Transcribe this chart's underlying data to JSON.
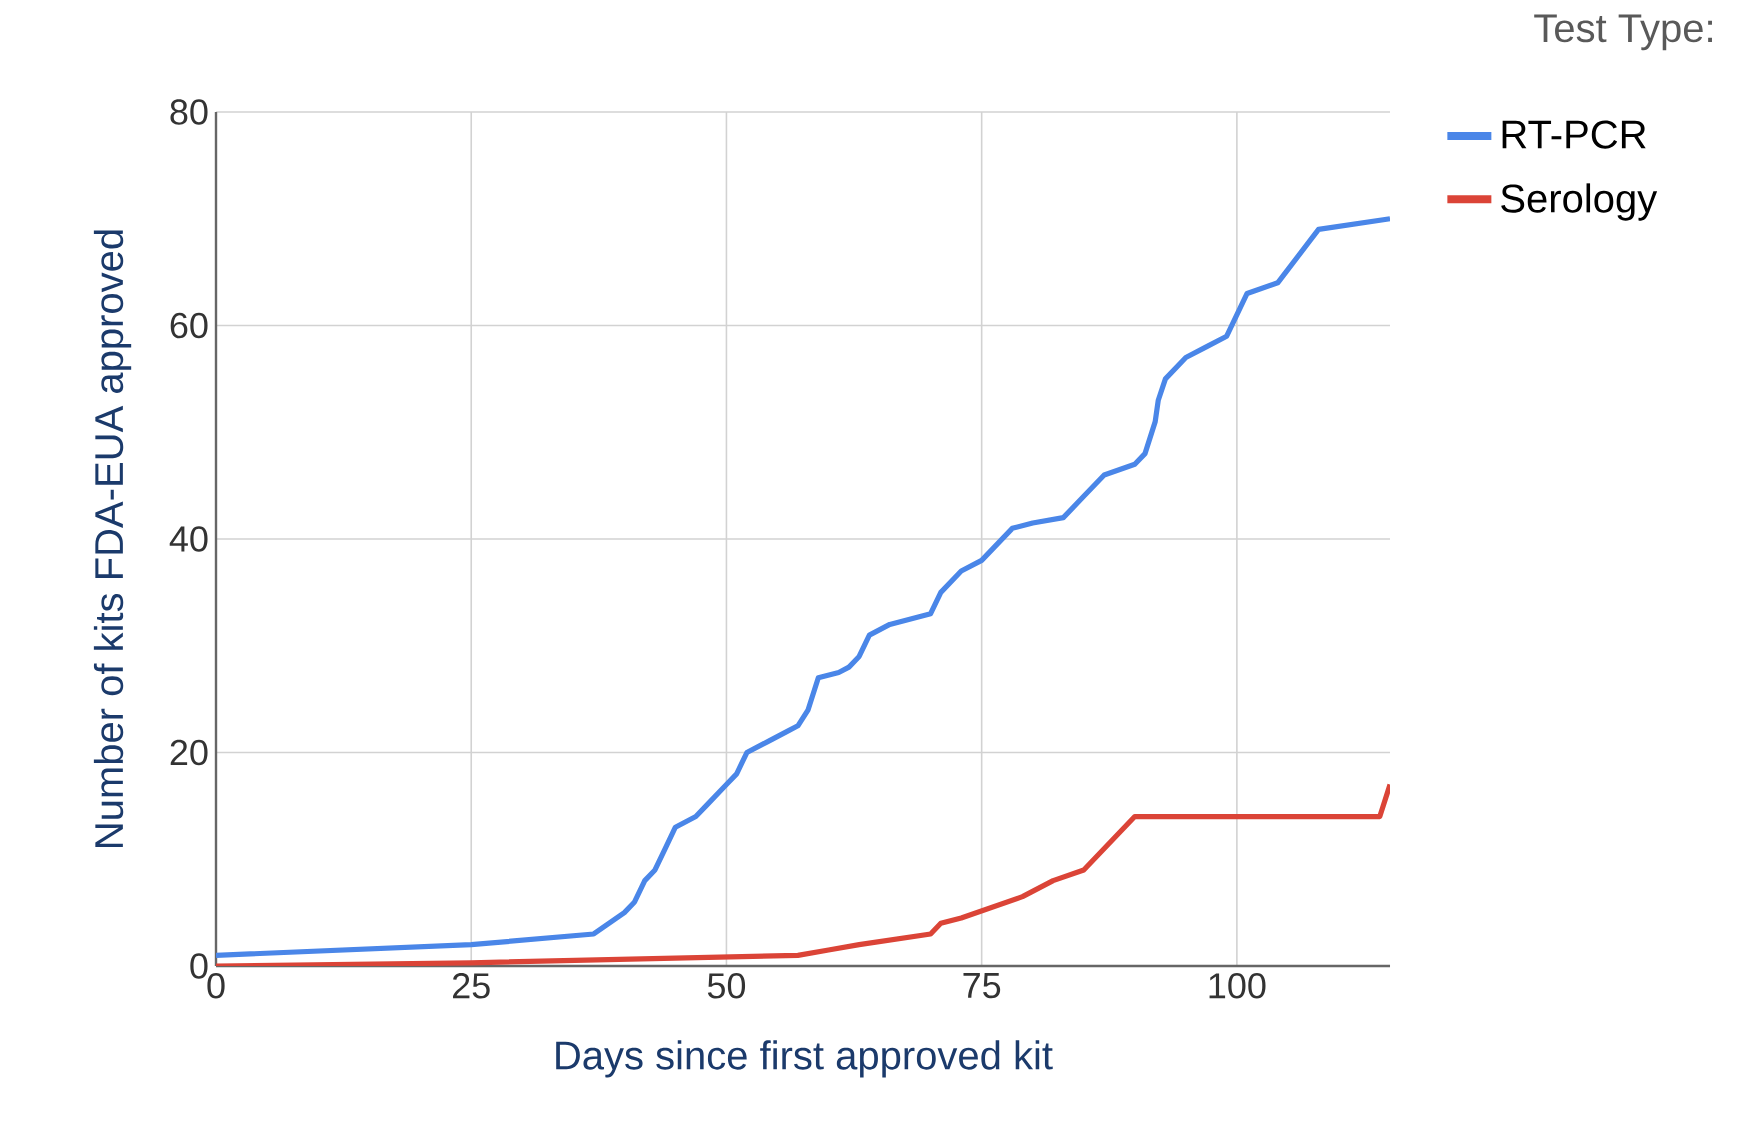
{
  "chart_data": {
    "type": "line",
    "xlabel": "Days since first approved kit",
    "ylabel": "Number of kits FDA-EUA approved",
    "legend_title": "Test Type:",
    "legend": "top right",
    "grid": true,
    "xlim": [
      0,
      115
    ],
    "ylim": [
      0,
      80
    ],
    "xticks": [
      0,
      25,
      50,
      75,
      100
    ],
    "yticks": [
      0,
      20,
      40,
      60,
      80
    ],
    "series": [
      {
        "name": "RT-PCR",
        "color": "#4a86e8",
        "x": [
          0,
          25,
          37,
          40,
          41,
          42,
          43,
          44,
          45,
          47,
          48,
          50,
          51,
          52,
          54,
          56,
          57,
          58,
          59,
          61,
          62,
          63,
          64,
          66,
          70,
          71,
          73,
          75,
          78,
          80,
          83,
          85,
          87,
          90,
          91,
          92,
          92.3,
          93,
          95,
          97,
          99,
          101,
          104,
          108,
          115
        ],
        "values": [
          1,
          2,
          3,
          5,
          6,
          8,
          9,
          11,
          13,
          14,
          15,
          17,
          18,
          20,
          21,
          22,
          22.5,
          24,
          27,
          27.5,
          28,
          29,
          31,
          32,
          33,
          35,
          37,
          38,
          41,
          41.5,
          42,
          44,
          46,
          47,
          48,
          51,
          53,
          55,
          57,
          58,
          59,
          63,
          64,
          69,
          70
        ]
      },
      {
        "name": "Serology",
        "color": "#db4437",
        "x": [
          0,
          25,
          57,
          60,
          63,
          70,
          71,
          73,
          79,
          82,
          85,
          90,
          114,
          115
        ],
        "values": [
          0,
          0.3,
          1,
          1.5,
          2,
          3,
          4,
          4.5,
          6.5,
          8,
          9,
          14,
          14,
          17
        ]
      }
    ]
  }
}
